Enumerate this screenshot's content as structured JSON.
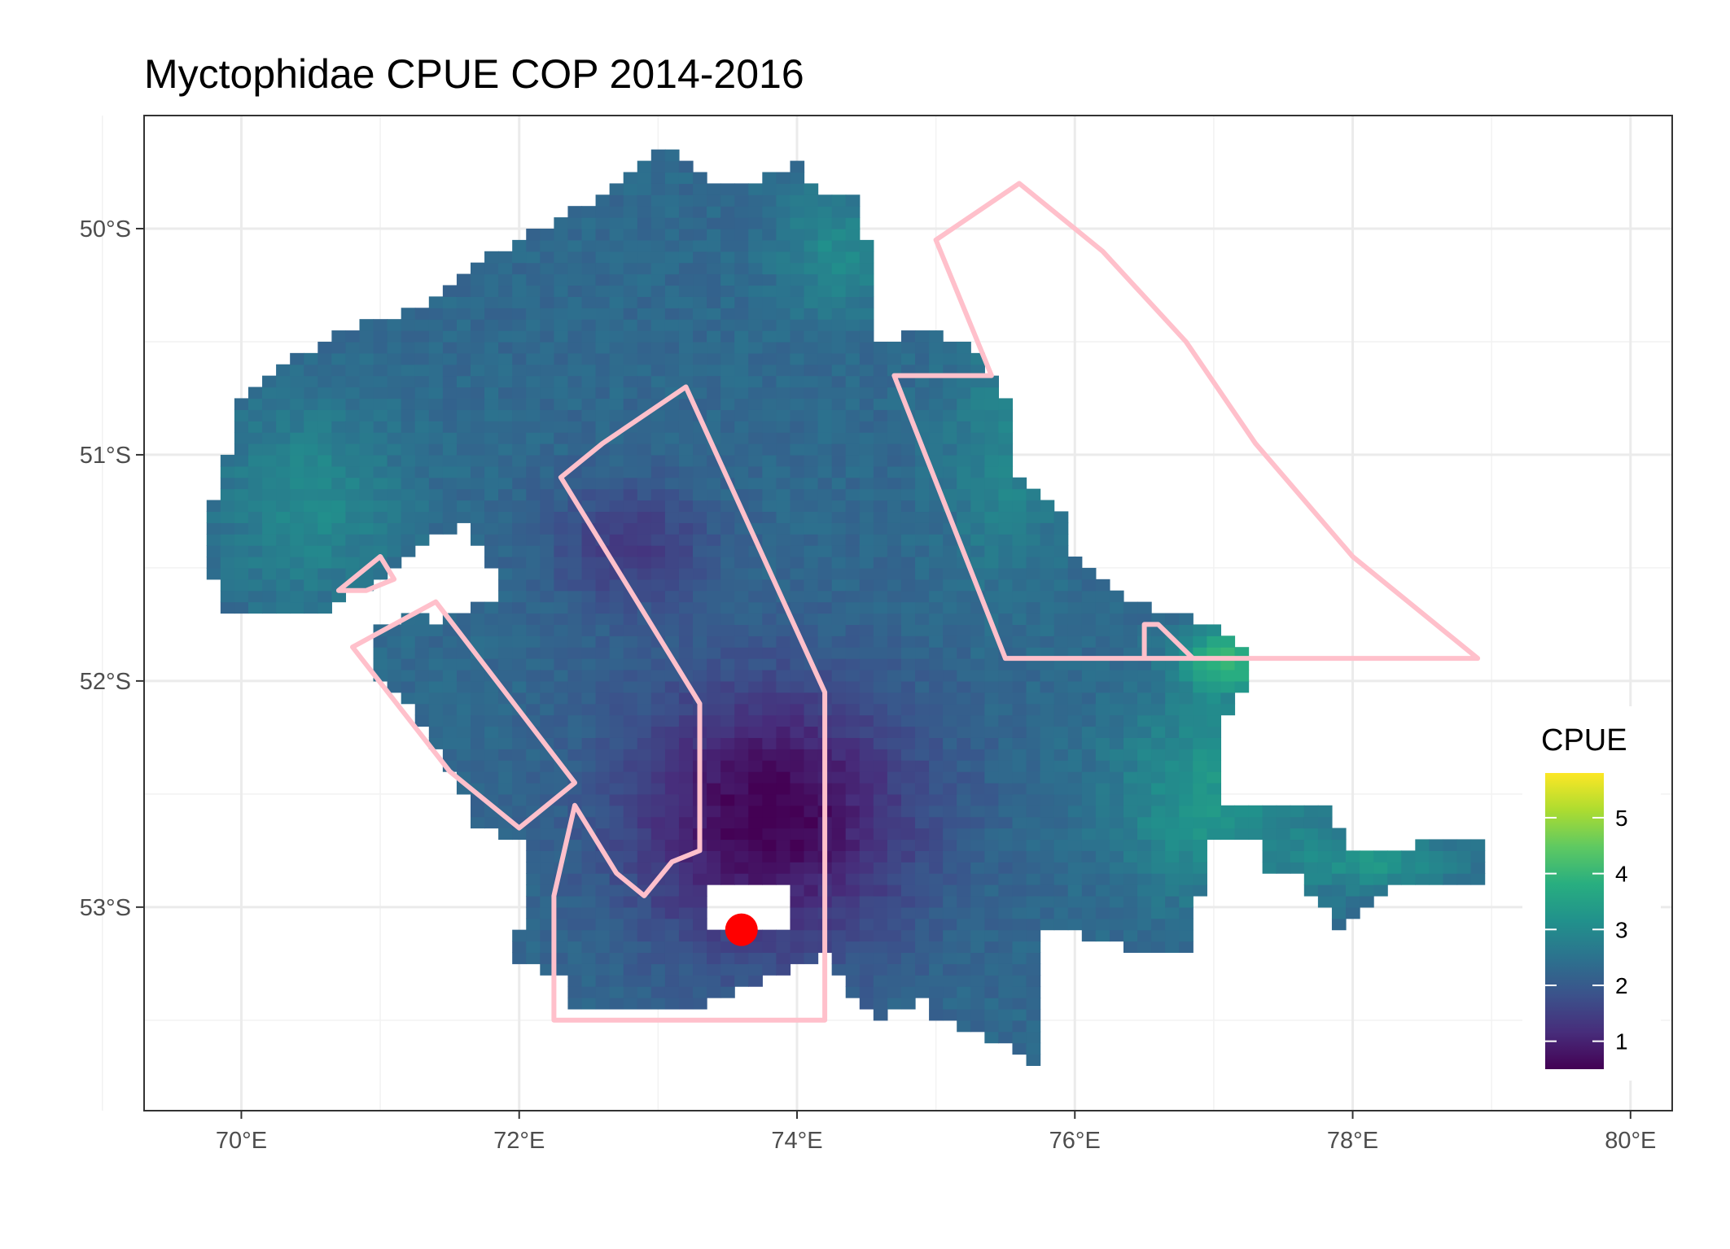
{
  "chart_data": {
    "type": "heatmap",
    "title": "Myctophidae  CPUE COP 2014-2016",
    "x_ticks": [
      "70°E",
      "72°E",
      "74°E",
      "76°E",
      "78°E",
      "80°E"
    ],
    "x_tick_values": [
      70,
      72,
      74,
      76,
      78,
      80
    ],
    "y_ticks": [
      "50°S",
      "51°S",
      "52°S",
      "53°S"
    ],
    "y_tick_values": [
      -50,
      -51,
      -52,
      -53
    ],
    "xlim": [
      69.3,
      80.3
    ],
    "ylim": [
      -53.9,
      -49.5
    ],
    "grid": true,
    "legend": {
      "title": "CPUE",
      "placement": "right",
      "range": [
        0.5,
        5.8
      ],
      "labels": [
        "1",
        "2",
        "3",
        "4",
        "5"
      ],
      "label_values": [
        1,
        2,
        3,
        4,
        5
      ],
      "colors": [
        "#440154",
        "#472d7b",
        "#3b528b",
        "#2c728e",
        "#21918c",
        "#28ae80",
        "#5ec962",
        "#addc30",
        "#fde725"
      ]
    },
    "grid_cell_deg": {
      "lon": 0.1,
      "lat": 0.05
    },
    "cpue_field": {
      "centers": [
        {
          "lon": 73.8,
          "lat": -52.6,
          "v": -1.8,
          "sx": 0.75,
          "sy": 0.42
        },
        {
          "lon": 72.8,
          "lat": -51.4,
          "v": -0.9,
          "sx": 0.4,
          "sy": 0.2
        },
        {
          "lon": 70.5,
          "lat": -51.2,
          "v": 0.7,
          "sx": 0.45,
          "sy": 0.3
        },
        {
          "lon": 74.3,
          "lat": -50.1,
          "v": 0.7,
          "sx": 0.3,
          "sy": 0.2
        },
        {
          "lon": 75.5,
          "lat": -51.0,
          "v": 0.6,
          "sx": 0.3,
          "sy": 0.4
        },
        {
          "lon": 77.0,
          "lat": -52.5,
          "v": 1.0,
          "sx": 0.5,
          "sy": 0.3
        },
        {
          "lon": 77.1,
          "lat": -51.9,
          "v": 1.6,
          "sx": 0.25,
          "sy": 0.1
        },
        {
          "lon": 78.2,
          "lat": -52.8,
          "v": 0.9,
          "sx": 0.4,
          "sy": 0.1
        }
      ],
      "base": 2.3
    },
    "survey_boundary": [
      [
        72.25,
        -53.5
      ],
      [
        72.25,
        -52.95
      ],
      [
        72.4,
        -52.55
      ],
      [
        72.7,
        -52.85
      ],
      [
        72.9,
        -52.95
      ],
      [
        73.1,
        -52.8
      ],
      [
        73.3,
        -52.75
      ],
      [
        73.3,
        -52.1
      ],
      [
        72.3,
        -51.1
      ],
      [
        72.6,
        -50.95
      ],
      [
        73.2,
        -50.7
      ],
      [
        74.2,
        -52.05
      ],
      [
        74.2,
        -53.5
      ]
    ],
    "polygons": [
      {
        "name": "",
        "coords": [
          [
            74.7,
            -50.65
          ],
          [
            75.4,
            -50.65
          ],
          [
            75.0,
            -50.05
          ],
          [
            75.6,
            -49.8
          ],
          [
            76.2,
            -50.1
          ],
          [
            76.8,
            -50.5
          ],
          [
            77.3,
            -50.95
          ],
          [
            78.0,
            -51.45
          ],
          [
            78.9,
            -51.9
          ],
          [
            76.5,
            -51.9
          ],
          [
            76.5,
            -51.75
          ],
          [
            76.6,
            -51.75
          ],
          [
            76.85,
            -51.9
          ],
          [
            75.5,
            -51.9
          ]
        ]
      },
      {
        "name": "",
        "coords": [
          [
            70.8,
            -51.85
          ],
          [
            71.4,
            -51.65
          ],
          [
            72.4,
            -52.45
          ],
          [
            72.0,
            -52.65
          ],
          [
            71.5,
            -52.4
          ]
        ]
      },
      {
        "name": "",
        "coords": [
          [
            70.7,
            -51.6
          ],
          [
            71.0,
            -51.45
          ],
          [
            71.1,
            -51.55
          ],
          [
            70.9,
            -51.6
          ]
        ]
      }
    ],
    "annotations": [
      {
        "type": "point",
        "lon": 73.6,
        "lat": -53.1,
        "color": "#ff0000"
      }
    ],
    "boundary_color": "#ffc0cb"
  }
}
